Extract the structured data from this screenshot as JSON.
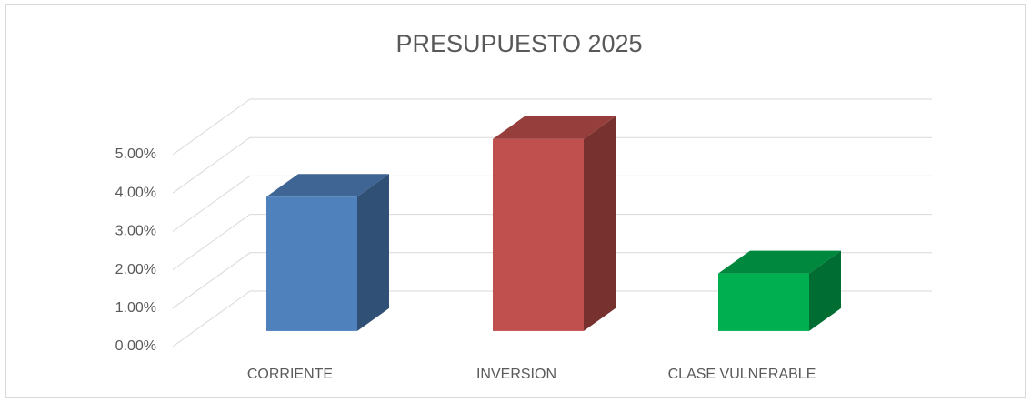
{
  "chart_data": {
    "type": "bar3d",
    "title": "PRESUPUESTO 2025",
    "categories": [
      "CORRIENTE",
      "INVERSION",
      "CLASE VULNERABLE"
    ],
    "values": [
      3.5,
      5.0,
      1.5
    ],
    "colors": [
      "#4f81bd",
      "#c0504d",
      "#00b050"
    ],
    "ylim": [
      0,
      5
    ],
    "yticks": [
      {
        "value": 0,
        "label": "0.00%"
      },
      {
        "value": 1,
        "label": "1.00%"
      },
      {
        "value": 2,
        "label": "2.00%"
      },
      {
        "value": 3,
        "label": "3.00%"
      },
      {
        "value": 4,
        "label": "4.00%"
      },
      {
        "value": 5,
        "label": "5.00%"
      }
    ],
    "grid": true
  }
}
